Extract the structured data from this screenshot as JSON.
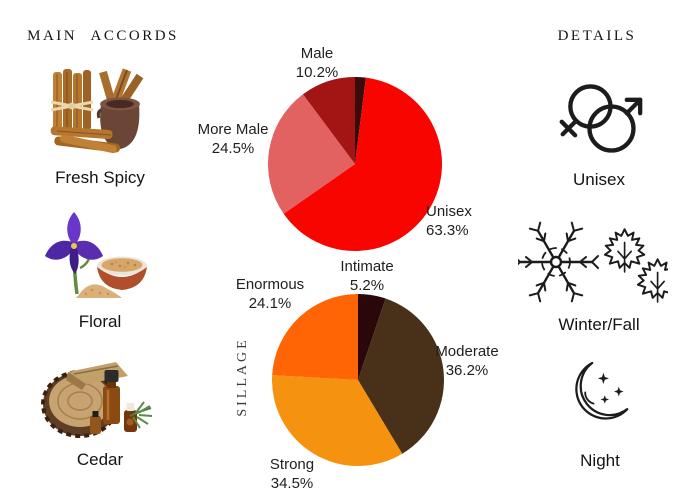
{
  "page": {
    "background": "#ffffff"
  },
  "main_accords": {
    "title": "MAIN ACCORDS",
    "items": [
      {
        "label": "Fresh Spicy",
        "icon": "cinnamon-sticks-and-mortar"
      },
      {
        "label": "Floral",
        "icon": "iris-flower-and-orris-root-bowl"
      },
      {
        "label": "Cedar",
        "icon": "cedar-wood-slice-and-oil-bottles"
      }
    ]
  },
  "details": {
    "title": "DETAILS",
    "items": [
      {
        "label": "Unisex",
        "icon": "unisex-gender-symbol"
      },
      {
        "label": "Winter/Fall",
        "icon": "snowflake-and-maple-leaves"
      },
      {
        "label": "Night",
        "icon": "crescent-moon-and-stars"
      }
    ]
  },
  "chart_data": [
    {
      "type": "pie",
      "name": "gender-audience",
      "start_angle": "12-o-clock",
      "direction": "clockwise",
      "slices": [
        {
          "label": "",
          "value": 2.0,
          "pct_text": "",
          "color": "#3a0c09"
        },
        {
          "label": "Unisex",
          "value": 63.3,
          "pct_text": "63.3%",
          "color": "#f90500"
        },
        {
          "label": "More Male",
          "value": 24.5,
          "pct_text": "24.5%",
          "color": "#e26161"
        },
        {
          "label": "Male",
          "value": 10.2,
          "pct_text": "10.2%",
          "color": "#a31414"
        }
      ]
    },
    {
      "type": "pie",
      "name": "sillage",
      "axis_label": "SILLAGE",
      "start_angle": "12-o-clock",
      "direction": "clockwise",
      "slices": [
        {
          "label": "Intimate",
          "value": 5.2,
          "pct_text": "5.2%",
          "color": "#2a0708"
        },
        {
          "label": "Moderate",
          "value": 36.2,
          "pct_text": "36.2%",
          "color": "#483019"
        },
        {
          "label": "Strong",
          "value": 34.5,
          "pct_text": "34.5%",
          "color": "#f59310"
        },
        {
          "label": "Enormous",
          "value": 24.1,
          "pct_text": "24.1%",
          "color": "#ff6505"
        }
      ]
    }
  ]
}
